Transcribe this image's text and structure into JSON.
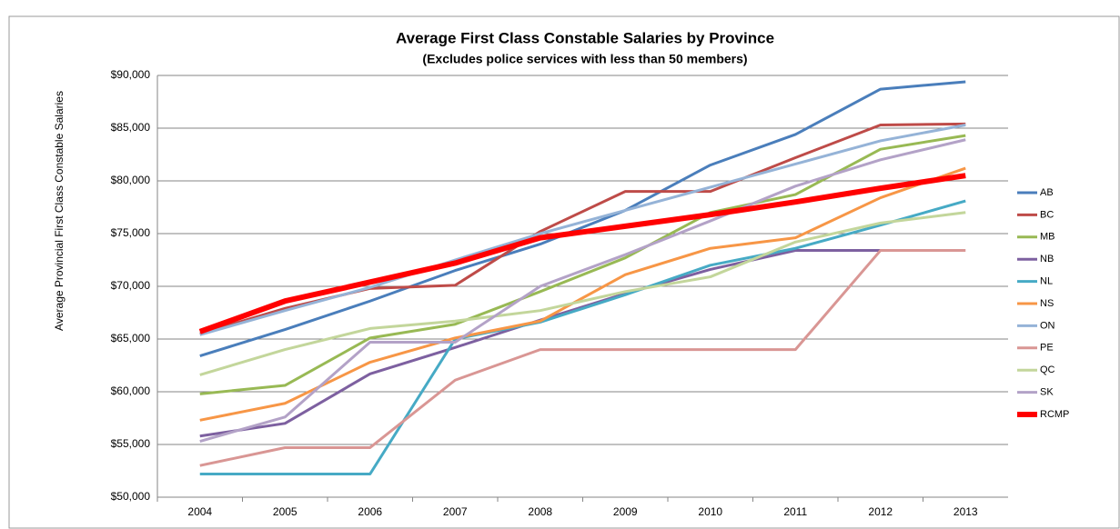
{
  "chart_data": {
    "type": "line",
    "title": "Average First Class Constable Salaries by Province",
    "subtitle": "(Excludes police services with less than 50 members)",
    "y_label": "Average Provincial First Class Constable Salaries",
    "categories": [
      "2004",
      "2005",
      "2006",
      "2007",
      "2008",
      "2009",
      "2010",
      "2011",
      "2012",
      "2013"
    ],
    "ylim": [
      50000,
      90000
    ],
    "yticks": [
      {
        "value": 50000,
        "label": "$50,000"
      },
      {
        "value": 55000,
        "label": "$55,000"
      },
      {
        "value": 60000,
        "label": "$60,000"
      },
      {
        "value": 65000,
        "label": "$65,000"
      },
      {
        "value": 70000,
        "label": "$70,000"
      },
      {
        "value": 75000,
        "label": "$75,000"
      },
      {
        "value": 80000,
        "label": "$80,000"
      },
      {
        "value": 85000,
        "label": "$85,000"
      },
      {
        "value": 90000,
        "label": "$90,000"
      }
    ],
    "grid": true,
    "legend": "right",
    "series": [
      {
        "name": "AB",
        "color": "#4a7ebb",
        "width": 3,
        "values": [
          63400,
          65900,
          68600,
          71500,
          74000,
          77200,
          81500,
          84400,
          88700,
          89400
        ]
      },
      {
        "name": "BC",
        "color": "#be4b48",
        "width": 3,
        "values": [
          65500,
          67900,
          69800,
          70100,
          75200,
          79000,
          79000,
          82200,
          85300,
          85400
        ]
      },
      {
        "name": "MB",
        "color": "#98b954",
        "width": 3,
        "values": [
          59800,
          60600,
          65100,
          66400,
          69500,
          72700,
          77000,
          78700,
          83000,
          84300
        ]
      },
      {
        "name": "NB",
        "color": "#7d60a0",
        "width": 3,
        "values": [
          55800,
          57000,
          61700,
          64200,
          66800,
          69300,
          71600,
          73400,
          73400,
          null
        ]
      },
      {
        "name": "NL",
        "color": "#46aac5",
        "width": 3,
        "values": [
          52200,
          52200,
          52200,
          65000,
          66600,
          69200,
          72000,
          73600,
          75800,
          78100
        ]
      },
      {
        "name": "NS",
        "color": "#f79646",
        "width": 3,
        "values": [
          57300,
          58900,
          62800,
          65100,
          66700,
          71100,
          73600,
          74600,
          78400,
          81200
        ]
      },
      {
        "name": "ON",
        "color": "#95b3d7",
        "width": 3,
        "values": [
          65400,
          67700,
          69900,
          72500,
          75000,
          77200,
          79400,
          81600,
          83800,
          85300
        ]
      },
      {
        "name": "PE",
        "color": "#d99694",
        "width": 3,
        "values": [
          53000,
          54700,
          54700,
          61100,
          64000,
          64000,
          64000,
          64000,
          73400,
          73400
        ]
      },
      {
        "name": "QC",
        "color": "#c3d69b",
        "width": 3,
        "values": [
          61600,
          64000,
          66000,
          66700,
          67700,
          69500,
          70900,
          74200,
          76000,
          77000
        ]
      },
      {
        "name": "SK",
        "color": "#b3a2c7",
        "width": 3,
        "values": [
          55300,
          57600,
          64700,
          64700,
          70000,
          73000,
          76200,
          79500,
          82000,
          83900
        ]
      },
      {
        "name": "RCMP",
        "color": "#ff0000",
        "width": 6,
        "values": [
          65700,
          68600,
          70400,
          72200,
          74600,
          75700,
          76800,
          78000,
          79300,
          80500
        ]
      }
    ]
  }
}
